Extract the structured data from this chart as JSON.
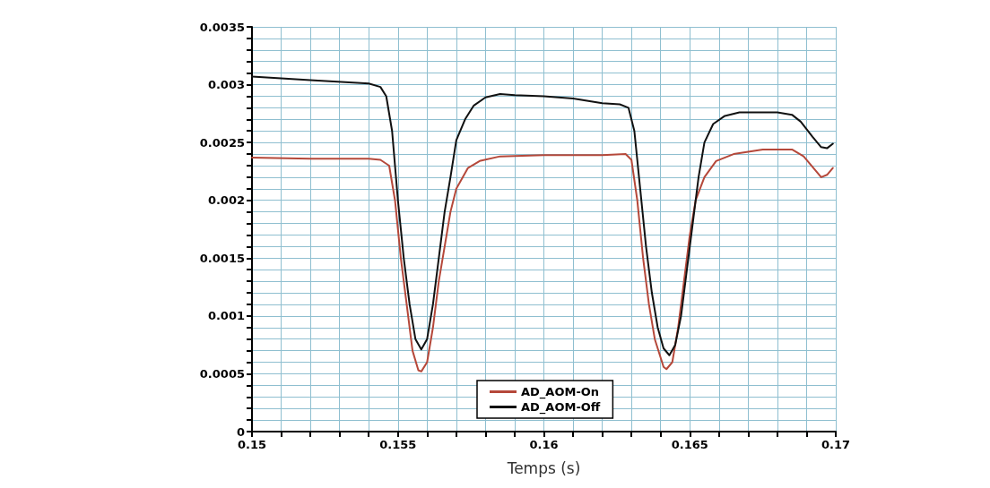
{
  "chart_data": {
    "type": "line",
    "xlabel": "Temps (s)",
    "xlim": [
      0.15,
      0.17
    ],
    "xticks": [
      0.15,
      {
        "value": 0.151,
        "label": null
      },
      {
        "value": 0.152,
        "label": null
      },
      {
        "value": 0.153,
        "label": null
      },
      {
        "value": 0.154,
        "label": null
      },
      0.155,
      {
        "value": 0.156,
        "label": null
      },
      {
        "value": 0.157,
        "label": null
      },
      {
        "value": 0.158,
        "label": null
      },
      {
        "value": 0.159,
        "label": null
      },
      0.16,
      {
        "value": 0.161,
        "label": null
      },
      {
        "value": 0.162,
        "label": null
      },
      {
        "value": 0.163,
        "label": null
      },
      {
        "value": 0.164,
        "label": null
      },
      0.165,
      {
        "value": 0.166,
        "label": null
      },
      {
        "value": 0.167,
        "label": null
      },
      {
        "value": 0.168,
        "label": null
      },
      {
        "value": 0.169,
        "label": null
      },
      0.17
    ],
    "ylim": [
      0,
      0.0035
    ],
    "yticks": [
      0,
      {
        "value": 0.0001,
        "label": null
      },
      {
        "value": 0.0002,
        "label": null
      },
      {
        "value": 0.0003,
        "label": null
      },
      {
        "value": 0.0004,
        "label": null
      },
      0.0005,
      {
        "value": 0.0006,
        "label": null
      },
      {
        "value": 0.0007,
        "label": null
      },
      {
        "value": 0.0008,
        "label": null
      },
      {
        "value": 0.0009,
        "label": null
      },
      0.001,
      {
        "value": 0.0011,
        "label": null
      },
      {
        "value": 0.0012,
        "label": null
      },
      {
        "value": 0.0013,
        "label": null
      },
      {
        "value": 0.0014,
        "label": null
      },
      0.0015,
      {
        "value": 0.0016,
        "label": null
      },
      {
        "value": 0.0017,
        "label": null
      },
      {
        "value": 0.0018,
        "label": null
      },
      {
        "value": 0.0019,
        "label": null
      },
      0.002,
      {
        "value": 0.0021,
        "label": null
      },
      {
        "value": 0.0022,
        "label": null
      },
      {
        "value": 0.0023,
        "label": null
      },
      {
        "value": 0.0024,
        "label": null
      },
      0.0025,
      {
        "value": 0.0026,
        "label": null
      },
      {
        "value": 0.0027,
        "label": null
      },
      {
        "value": 0.0028,
        "label": null
      },
      {
        "value": 0.0029,
        "label": null
      },
      0.003,
      {
        "value": 0.0031,
        "label": null
      },
      {
        "value": 0.0032,
        "label": null
      },
      {
        "value": 0.0033,
        "label": null
      },
      {
        "value": 0.0034,
        "label": null
      },
      0.0035
    ],
    "grid": true,
    "legend": "bottom",
    "marker": "none",
    "line_style": "solid",
    "series": [
      {
        "name": "AD_AOM-On",
        "color": "#b5483a",
        "x": [
          0.15,
          0.152,
          0.154,
          0.1544,
          0.1547,
          0.1549,
          0.1551,
          0.1553,
          0.1555,
          0.1557,
          0.1558,
          0.156,
          0.1562,
          0.1564,
          0.1566,
          0.1568,
          0.157,
          0.1574,
          0.1578,
          0.1585,
          0.16,
          0.162,
          0.1628,
          0.163,
          0.1632,
          0.1634,
          0.1636,
          0.1638,
          0.1641,
          0.1642,
          0.1644,
          0.1646,
          0.1648,
          0.165,
          0.1652,
          0.1655,
          0.1659,
          0.1665,
          0.1675,
          0.1685,
          0.1689,
          0.1693,
          0.1695,
          0.1697,
          0.1699
        ],
        "values": [
          0.00237,
          0.00236,
          0.00236,
          0.00235,
          0.0023,
          0.002,
          0.0015,
          0.0011,
          0.0007,
          0.00053,
          0.00052,
          0.0006,
          0.0009,
          0.0013,
          0.0016,
          0.0019,
          0.0021,
          0.00228,
          0.00234,
          0.00238,
          0.00239,
          0.00239,
          0.0024,
          0.00235,
          0.002,
          0.0015,
          0.0011,
          0.0008,
          0.00056,
          0.00054,
          0.0006,
          0.0009,
          0.0013,
          0.0017,
          0.002,
          0.0022,
          0.00234,
          0.0024,
          0.00244,
          0.00244,
          0.00238,
          0.00226,
          0.0022,
          0.00222,
          0.00228
        ]
      },
      {
        "name": "AD_AOM-Off",
        "color": "#111111",
        "x": [
          0.15,
          0.152,
          0.154,
          0.1544,
          0.1546,
          0.1548,
          0.155,
          0.1552,
          0.1554,
          0.1556,
          0.1558,
          0.156,
          0.1562,
          0.1564,
          0.1566,
          0.1568,
          0.157,
          0.1573,
          0.1576,
          0.158,
          0.1585,
          0.159,
          0.16,
          0.161,
          0.162,
          0.1626,
          0.1629,
          0.1631,
          0.1633,
          0.1635,
          0.1637,
          0.1639,
          0.1641,
          0.1643,
          0.1645,
          0.1647,
          0.1649,
          0.1651,
          0.1653,
          0.1655,
          0.1658,
          0.1662,
          0.1667,
          0.168,
          0.1685,
          0.1688,
          0.1692,
          0.1695,
          0.1697,
          0.1699
        ],
        "values": [
          0.00307,
          0.00304,
          0.00301,
          0.00298,
          0.0029,
          0.0026,
          0.002,
          0.0015,
          0.0011,
          0.0008,
          0.00071,
          0.0008,
          0.0011,
          0.0015,
          0.0019,
          0.0022,
          0.00252,
          0.0027,
          0.00282,
          0.00289,
          0.00292,
          0.00291,
          0.0029,
          0.00288,
          0.00284,
          0.00283,
          0.0028,
          0.0026,
          0.0021,
          0.0016,
          0.0012,
          0.0009,
          0.00072,
          0.00066,
          0.00075,
          0.001,
          0.0014,
          0.0018,
          0.0022,
          0.0025,
          0.00266,
          0.00273,
          0.00276,
          0.00276,
          0.00274,
          0.00268,
          0.00255,
          0.00246,
          0.00245,
          0.00249
        ]
      }
    ]
  }
}
